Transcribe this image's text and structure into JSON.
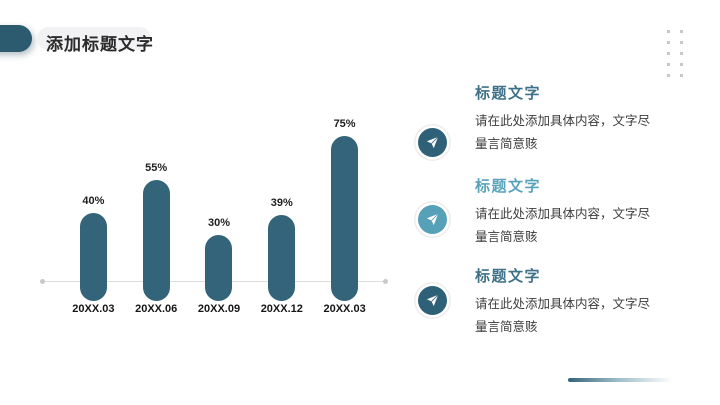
{
  "slide": {
    "title": "添加标题文字",
    "accent_dark": "#2c5a6e",
    "accent_light": "#57a1b8"
  },
  "chart_data": {
    "type": "bar",
    "categories": [
      "20XX.03",
      "20XX.06",
      "20XX.09",
      "20XX.12",
      "20XX.03"
    ],
    "values": [
      40,
      55,
      30,
      39,
      75
    ],
    "value_labels": [
      "40%",
      "55%",
      "30%",
      "39%",
      "75%"
    ],
    "title": "",
    "xlabel": "",
    "ylabel": "",
    "ylim": [
      0,
      100
    ],
    "grid": false,
    "legend": false,
    "bar_color": "#34647a",
    "axis_color": "#dedede"
  },
  "info_items": [
    {
      "heading": "标题文字",
      "heading_color": "#3e7189",
      "icon": "paper-plane-icon",
      "icon_color": "#2e6078",
      "lines": [
        "请在此处添加具体内容，文字尽",
        "量言简意赅"
      ]
    },
    {
      "heading": "标题文字",
      "heading_color": "#58a3bb",
      "icon": "paper-plane-icon",
      "icon_color": "#57a1b8",
      "lines": [
        "请在此处添加具体内容，文字尽",
        "量言简意赅"
      ]
    },
    {
      "heading": "标题文字",
      "heading_color": "#3e7189",
      "icon": "paper-plane-icon",
      "icon_color": "#2e6078",
      "lines": [
        "请在此处添加具体内容，文字尽",
        "量言简意赅"
      ]
    }
  ],
  "decor": {
    "dots": {
      "rows": 5,
      "cols": 2
    },
    "footer_line_color": "#34647a"
  }
}
